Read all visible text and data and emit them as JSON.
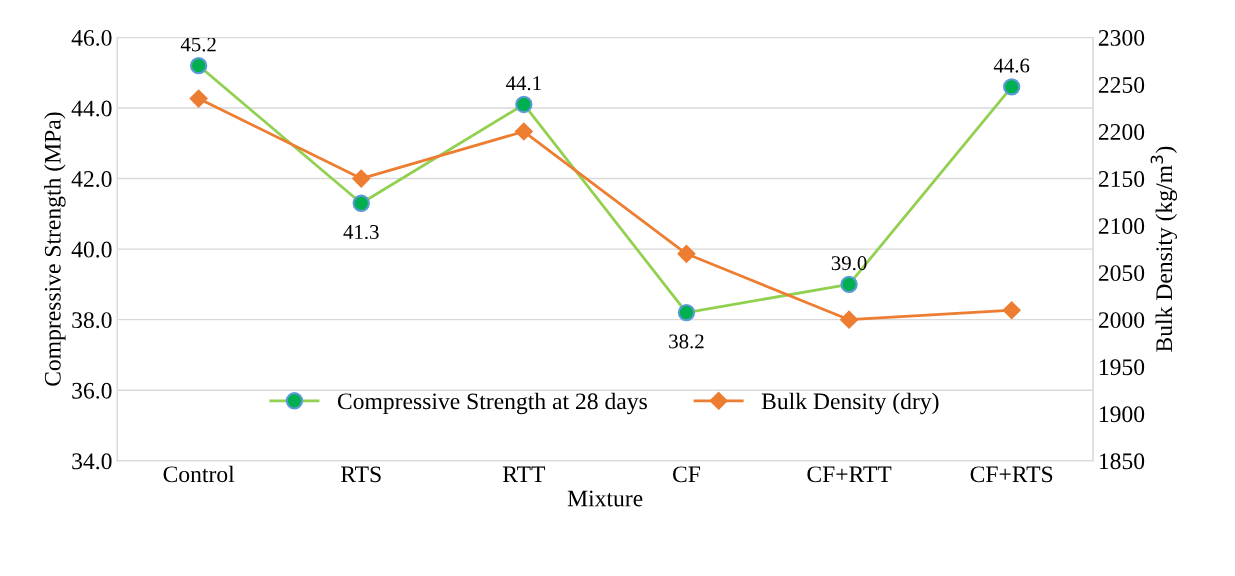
{
  "chart_data": {
    "type": "line",
    "xlabel": "Mixture",
    "ylabel": "Compressive Strength (MPa)",
    "y2label": "Bulk Density (kg/m$^{3}$)",
    "categories": [
      "Control",
      "RTS",
      "RTT",
      "CF",
      "CF+RTT",
      "CF+RTS"
    ],
    "series": [
      {
        "name": "Compressive Strength at 28 days",
        "color": "#92d050",
        "values": [
          45.2,
          41.3,
          44.1,
          38.2,
          39.0,
          44.6
        ],
        "marker": "circle",
        "value_labels": [
          "45.2",
          "41.3",
          "44.1",
          "38.2",
          "39.0",
          "44.6"
        ]
      },
      {
        "name": "Bulk Density (dry)",
        "color": "#ed7d31",
        "values": [
          2235,
          2150,
          2200,
          2070,
          2000,
          2010
        ],
        "marker": "diamond",
        "axis": "y2"
      }
    ],
    "ylim": [
      34,
      46
    ],
    "yticks": [
      {
        "value": 34,
        "label": "34.0"
      },
      {
        "value": 36,
        "label": "36.0"
      },
      {
        "value": 38,
        "label": "38.0"
      },
      {
        "value": 40,
        "label": "40.0"
      },
      {
        "value": 42,
        "label": "42.0"
      },
      {
        "value": 44,
        "label": "44.0"
      },
      {
        "value": 46,
        "label": "46.0"
      }
    ],
    "y2lim": [
      1850,
      2300
    ],
    "y2ticks": [
      1850,
      1900,
      1950,
      2000,
      2050,
      2100,
      2150,
      2200,
      2250,
      2300
    ],
    "grid": "y",
    "legend": "bottom",
    "line_style": "solid"
  }
}
